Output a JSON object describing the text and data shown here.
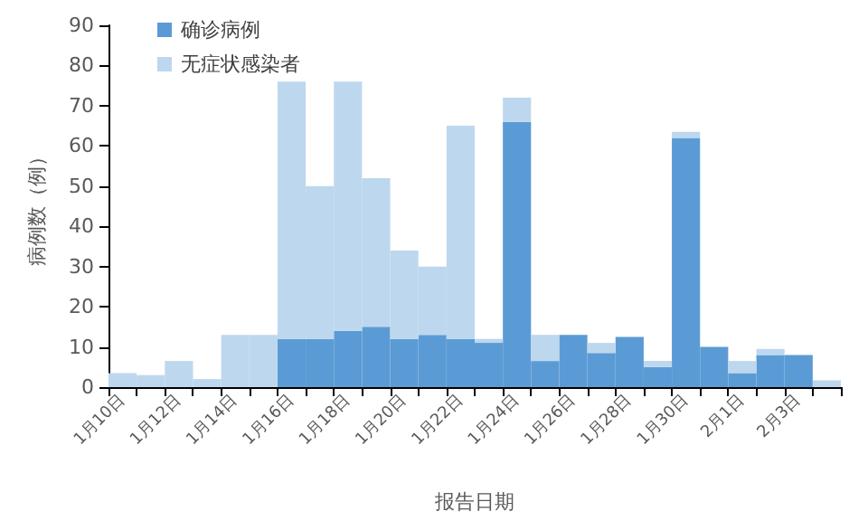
{
  "chart_data": {
    "type": "bar",
    "stacked": true,
    "xlabel": "报告日期",
    "ylabel": "病例数（例）",
    "categories": [
      "1月10日",
      null,
      "1月12日",
      null,
      "1月14日",
      null,
      "1月16日",
      null,
      "1月18日",
      null,
      "1月20日",
      null,
      "1月22日",
      null,
      "1月24日",
      null,
      "1月26日",
      null,
      "1月28日",
      null,
      "1月30日",
      null,
      "2月1日",
      null,
      "2月3日",
      null
    ],
    "series": [
      {
        "name": "确诊病例",
        "color": "#5b9bd5",
        "values": [
          0,
          0,
          0,
          0,
          0,
          0,
          12,
          12,
          14,
          15,
          12,
          13,
          12,
          11,
          66,
          6.5,
          13,
          8.5,
          12.5,
          5,
          62,
          10,
          3.5,
          8,
          8,
          0
        ]
      },
      {
        "name": "无症状感染者",
        "color": "#bdd7ee",
        "values": [
          3.5,
          3,
          6.5,
          2,
          13,
          13,
          64,
          38,
          62,
          37,
          22,
          17,
          53,
          1,
          6,
          6.5,
          0,
          2.5,
          0,
          1.5,
          1.5,
          0,
          3,
          1.5,
          0,
          1.7
        ]
      }
    ],
    "ylim": [
      0,
      90
    ],
    "yticks": [
      0,
      10,
      20,
      30,
      40,
      50,
      60,
      70,
      80,
      90
    ],
    "grid": false,
    "legend": "top left"
  }
}
